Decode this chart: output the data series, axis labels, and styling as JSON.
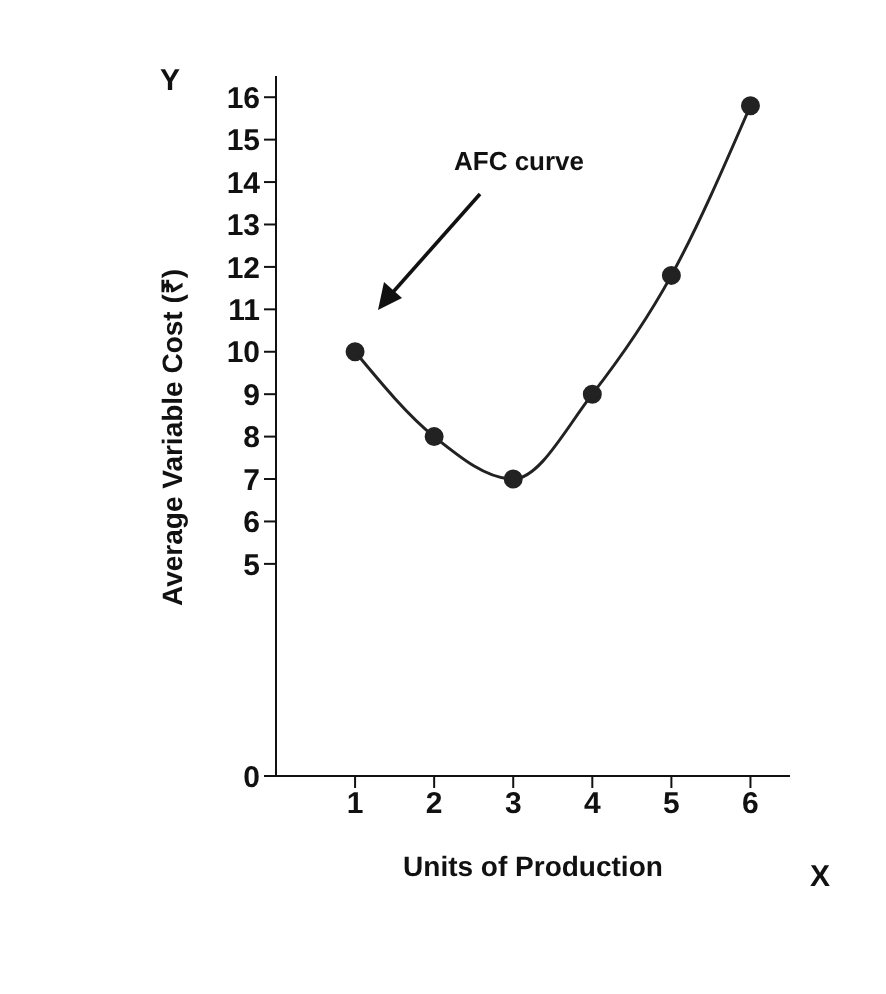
{
  "chart_data": {
    "type": "line",
    "xlabel": "Units of Production",
    "ylabel": "Average Variable Cost (₹)",
    "x": [
      1,
      2,
      3,
      4,
      5,
      6
    ],
    "series": [
      {
        "color": "#222222",
        "values": [
          10,
          8,
          7,
          9,
          11.8,
          15.8
        ]
      }
    ],
    "xlim": [
      0,
      6.5
    ],
    "xticks": [
      1,
      2,
      3,
      4,
      5,
      6
    ],
    "ylim": [
      0,
      16.5
    ],
    "yticks": [
      0,
      5,
      6,
      7,
      8,
      9,
      10,
      11,
      12,
      13,
      14,
      15,
      16
    ],
    "marker": "circle",
    "line_style": "solid",
    "grid": false,
    "legend": false,
    "annotations": [
      "AFC curve",
      "Y",
      "X"
    ]
  }
}
